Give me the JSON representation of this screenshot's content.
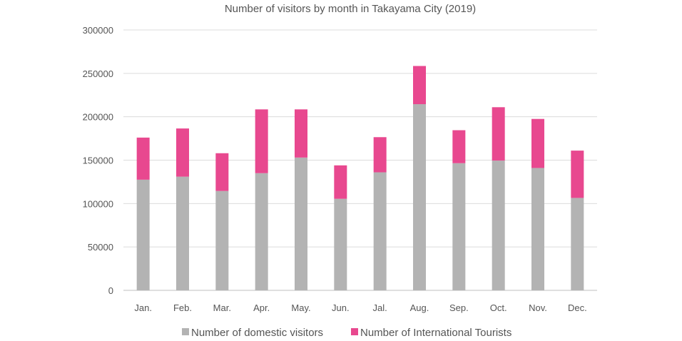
{
  "chart_data": {
    "type": "bar",
    "stacked": true,
    "title": "Number of visitors by month in Takayama City (2019)",
    "xlabel": "",
    "ylabel": "",
    "categories": [
      "Jan.",
      "Feb.",
      "Mar.",
      "Apr.",
      "May.",
      "Jun.",
      "Jal.",
      "Aug.",
      "Sep.",
      "Oct.",
      "Nov.",
      "Dec."
    ],
    "series": [
      {
        "name": "Number of domestic visitors",
        "color": "#b3b3b3",
        "values": [
          127500,
          131000,
          114500,
          135000,
          153000,
          105500,
          136000,
          214500,
          146500,
          149500,
          141000,
          106500
        ]
      },
      {
        "name": "Number of International Tourists",
        "color": "#e8488f",
        "values": [
          48500,
          55500,
          43500,
          73500,
          55500,
          38500,
          40500,
          44000,
          38000,
          61500,
          56500,
          54500
        ]
      }
    ],
    "ylim": [
      0,
      300000
    ],
    "yticks": [
      0,
      50000,
      100000,
      150000,
      200000,
      250000,
      300000
    ],
    "ytick_labels": [
      "0",
      "50000",
      "100000",
      "150000",
      "200000",
      "250000",
      "300000"
    ],
    "grid": true,
    "legend_position": "bottom"
  }
}
